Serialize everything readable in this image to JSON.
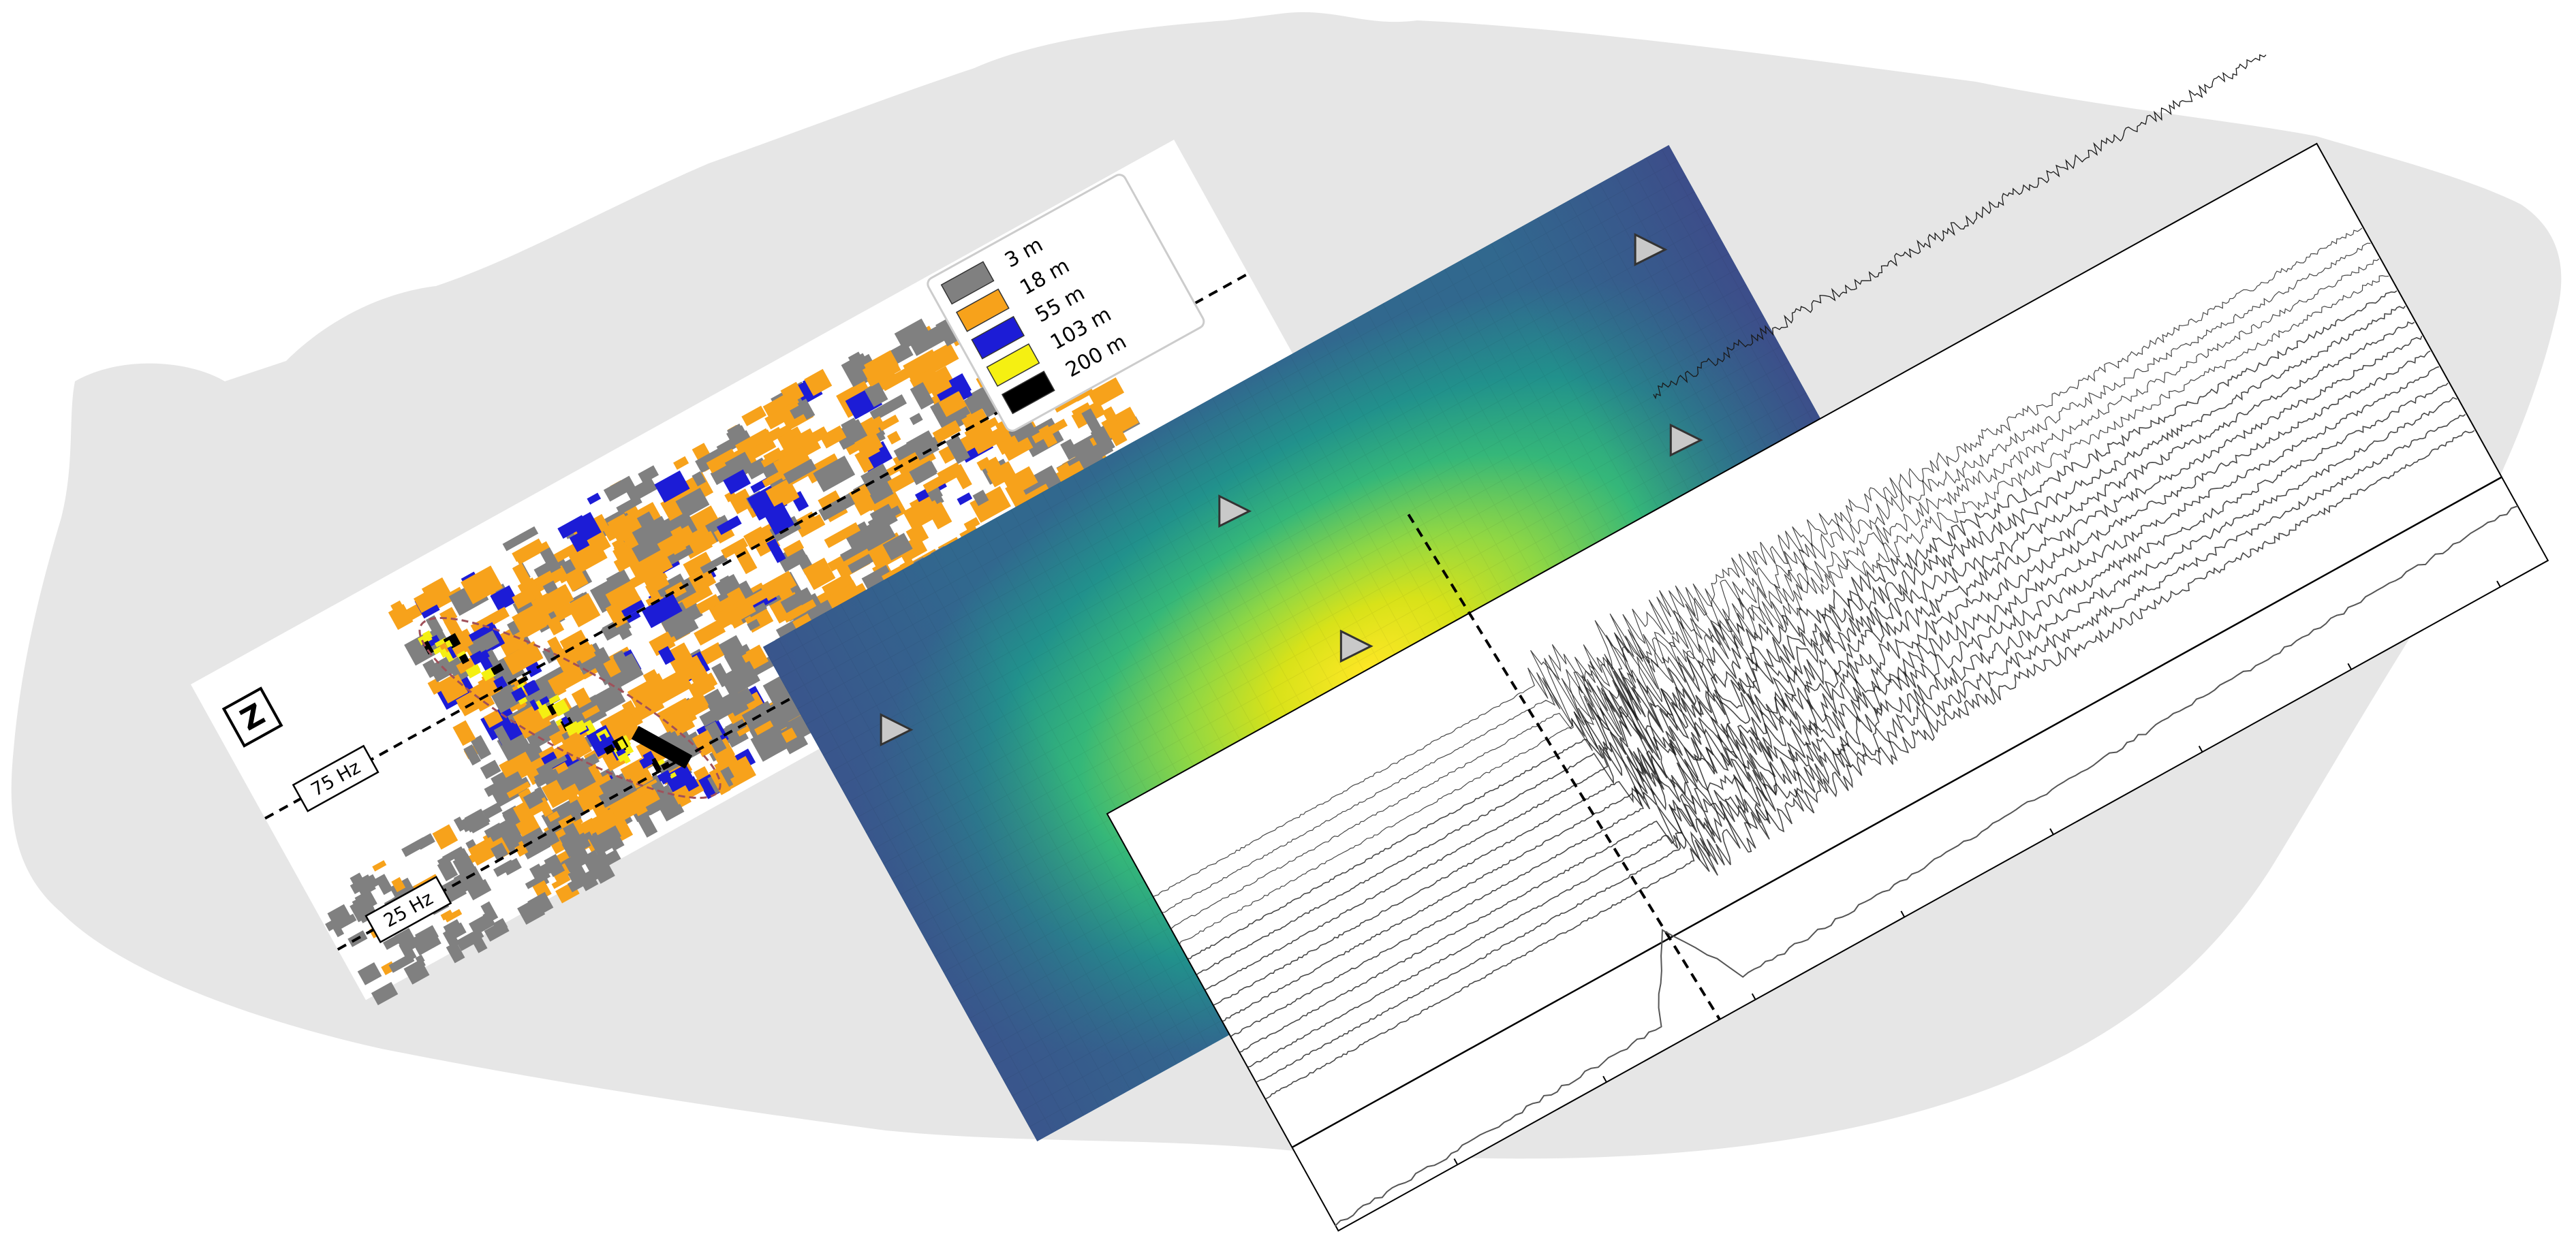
{
  "panel_left": {
    "legend": {
      "items": [
        {
          "label": "3 m",
          "color": "#808080"
        },
        {
          "label": "18 m",
          "color": "#f7a21b"
        },
        {
          "label": "55 m",
          "color": "#1c1cd6"
        },
        {
          "label": "103 m",
          "color": "#f5f012"
        },
        {
          "label": "200 m",
          "color": "#000000"
        }
      ]
    },
    "component_badge": "Z",
    "frequency_lines": [
      {
        "label": "75 Hz"
      },
      {
        "label": "25 Hz"
      }
    ]
  },
  "panel_middle": {
    "colormap": "viridis",
    "station_count": 6,
    "source_markers": [
      {
        "color": "#ee1111"
      },
      {
        "color": "#f7a21b"
      }
    ]
  },
  "panel_right": {
    "trace_color": "#1a1a1a"
  },
  "colors": {
    "silhouette": "#e6e6e6",
    "orange": "#f7a21b",
    "gray": "#808080",
    "blue": "#1c1cd6",
    "yellow": "#f5f012",
    "black": "#000000"
  }
}
